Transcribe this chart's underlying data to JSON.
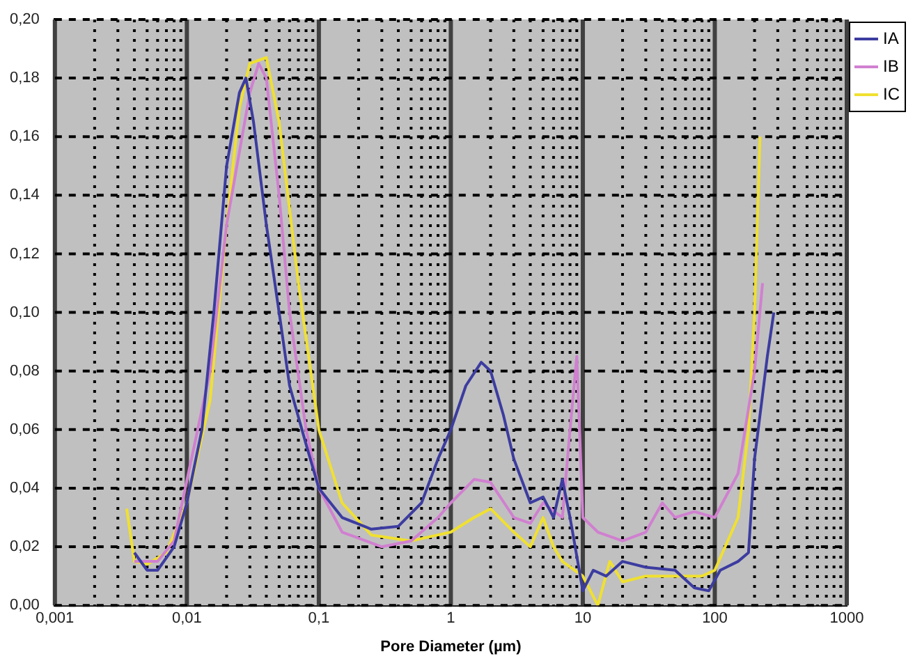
{
  "chart_data": {
    "type": "line",
    "xlabel": "Pore Diameter (µm)",
    "log": "x",
    "grid": true,
    "legend": "top right",
    "marker": "none",
    "line_style": "solid",
    "xlim": [
      0.001,
      1000
    ],
    "xticks": [
      {
        "value": 0.001,
        "label": "0,001"
      },
      {
        "value": 0.002,
        "label": null
      },
      {
        "value": 0.003,
        "label": null
      },
      {
        "value": 0.004,
        "label": null
      },
      {
        "value": 0.005,
        "label": null
      },
      {
        "value": 0.006,
        "label": null
      },
      {
        "value": 0.007,
        "label": null
      },
      {
        "value": 0.008,
        "label": null
      },
      {
        "value": 0.009,
        "label": null
      },
      {
        "value": 0.01,
        "label": "0,01"
      },
      {
        "value": 0.02,
        "label": null
      },
      {
        "value": 0.03,
        "label": null
      },
      {
        "value": 0.04,
        "label": null
      },
      {
        "value": 0.05,
        "label": null
      },
      {
        "value": 0.06,
        "label": null
      },
      {
        "value": 0.07,
        "label": null
      },
      {
        "value": 0.08,
        "label": null
      },
      {
        "value": 0.09,
        "label": null
      },
      {
        "value": 0.1,
        "label": "0,1"
      },
      {
        "value": 0.2,
        "label": null
      },
      {
        "value": 0.3,
        "label": null
      },
      {
        "value": 0.4,
        "label": null
      },
      {
        "value": 0.5,
        "label": null
      },
      {
        "value": 0.6,
        "label": null
      },
      {
        "value": 0.7,
        "label": null
      },
      {
        "value": 0.8,
        "label": null
      },
      {
        "value": 0.9,
        "label": null
      },
      1,
      {
        "value": 2,
        "label": null
      },
      {
        "value": 3,
        "label": null
      },
      {
        "value": 4,
        "label": null
      },
      {
        "value": 5,
        "label": null
      },
      {
        "value": 6,
        "label": null
      },
      {
        "value": 7,
        "label": null
      },
      {
        "value": 8,
        "label": null
      },
      {
        "value": 9,
        "label": null
      },
      10,
      {
        "value": 20,
        "label": null
      },
      {
        "value": 30,
        "label": null
      },
      {
        "value": 40,
        "label": null
      },
      {
        "value": 50,
        "label": null
      },
      {
        "value": 60,
        "label": null
      },
      {
        "value": 70,
        "label": null
      },
      {
        "value": 80,
        "label": null
      },
      {
        "value": 90,
        "label": null
      },
      100,
      {
        "value": 200,
        "label": null
      },
      {
        "value": 300,
        "label": null
      },
      {
        "value": 400,
        "label": null
      },
      {
        "value": 500,
        "label": null
      },
      {
        "value": 600,
        "label": null
      },
      {
        "value": 700,
        "label": null
      },
      {
        "value": 800,
        "label": null
      },
      {
        "value": 900,
        "label": null
      },
      1000
    ],
    "ylim": [
      0,
      0.2
    ],
    "yticks": [
      {
        "value": 0,
        "label": "0,00"
      },
      {
        "value": 0.02,
        "label": "0,02"
      },
      {
        "value": 0.04,
        "label": "0,04"
      },
      {
        "value": 0.06,
        "label": "0,06"
      },
      {
        "value": 0.08,
        "label": "0,08"
      },
      {
        "value": 0.1,
        "label": "0,10"
      },
      {
        "value": 0.12,
        "label": "0,12"
      },
      {
        "value": 0.14,
        "label": "0,14"
      },
      {
        "value": 0.16,
        "label": "0,16"
      },
      {
        "value": 0.18,
        "label": "0,18"
      },
      {
        "value": 0.2,
        "label": "0,20"
      }
    ],
    "series": [
      {
        "name": "IA",
        "color": "#3c3ca0",
        "x": [
          0.004,
          0.005,
          0.006,
          0.008,
          0.01,
          0.013,
          0.016,
          0.02,
          0.025,
          0.028,
          0.032,
          0.04,
          0.05,
          0.06,
          0.08,
          0.1,
          0.15,
          0.25,
          0.4,
          0.6,
          0.8,
          1,
          1.3,
          1.7,
          2,
          2.5,
          3,
          4,
          5,
          6,
          7,
          8,
          10,
          12,
          15,
          20,
          30,
          50,
          70,
          90,
          110,
          150,
          180,
          200,
          250,
          280
        ],
        "values": [
          0.018,
          0.012,
          0.012,
          0.02,
          0.035,
          0.06,
          0.1,
          0.15,
          0.175,
          0.18,
          0.165,
          0.13,
          0.1,
          0.075,
          0.055,
          0.04,
          0.03,
          0.026,
          0.027,
          0.035,
          0.05,
          0.06,
          0.075,
          0.083,
          0.08,
          0.065,
          0.05,
          0.035,
          0.037,
          0.03,
          0.043,
          0.03,
          0.005,
          0.012,
          0.01,
          0.015,
          0.013,
          0.012,
          0.006,
          0.005,
          0.012,
          0.015,
          0.018,
          0.05,
          0.085,
          0.1
        ]
      },
      {
        "name": "IB",
        "color": "#d080d0",
        "x": [
          0.004,
          0.006,
          0.008,
          0.01,
          0.015,
          0.02,
          0.03,
          0.035,
          0.04,
          0.05,
          0.06,
          0.08,
          0.1,
          0.15,
          0.3,
          0.5,
          0.8,
          1,
          1.5,
          2,
          3,
          4,
          5,
          7,
          8,
          9,
          10,
          13,
          20,
          30,
          40,
          50,
          70,
          100,
          150,
          200,
          230
        ],
        "values": [
          0.015,
          0.015,
          0.022,
          null,
          0.08,
          0.13,
          0.175,
          0.185,
          0.18,
          0.14,
          0.1,
          0.06,
          0.04,
          0.025,
          0.02,
          0.022,
          0.03,
          0.035,
          0.043,
          0.042,
          0.03,
          0.028,
          0.035,
          0.03,
          0.06,
          0.085,
          0.03,
          0.025,
          0.022,
          0.025,
          0.035,
          0.03,
          0.032,
          0.03,
          0.045,
          0.08,
          0.11
        ]
      },
      {
        "name": "IC",
        "color": "#f0e030",
        "x": [
          0.0035,
          0.004,
          0.005,
          0.007,
          0.01,
          0.015,
          0.02,
          0.025,
          0.03,
          0.04,
          0.05,
          0.07,
          0.1,
          0.15,
          0.25,
          0.5,
          1,
          1.5,
          2,
          3,
          4,
          5,
          6,
          7,
          10,
          13,
          16,
          20,
          30,
          50,
          80,
          100,
          150,
          180,
          200,
          220
        ],
        "values": [
          0.033,
          0.015,
          0.014,
          0.018,
          0.035,
          0.07,
          0.13,
          0.17,
          0.185,
          0.187,
          0.165,
          0.11,
          0.06,
          0.035,
          0.024,
          0.022,
          0.025,
          0.03,
          0.033,
          0.025,
          0.02,
          0.03,
          0.02,
          0.015,
          0.01,
          0,
          0.015,
          0.008,
          0.01,
          0.01,
          0.01,
          0.012,
          0.03,
          0.06,
          0.1,
          0.16
        ]
      }
    ]
  }
}
